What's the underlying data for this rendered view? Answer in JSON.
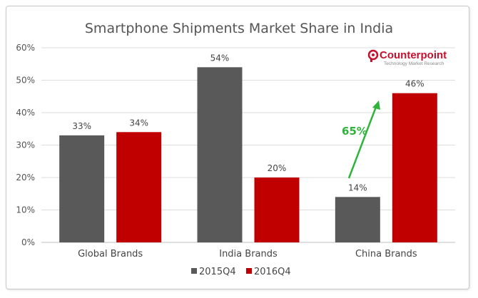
{
  "chart_data": {
    "type": "bar",
    "title": "Smartphone Shipments Market Share in India",
    "categories": [
      "Global Brands",
      "India Brands",
      "China Brands"
    ],
    "series": [
      {
        "name": "2015Q4",
        "values": [
          33,
          54,
          14
        ],
        "color": "#595959"
      },
      {
        "name": "2016Q4",
        "values": [
          34,
          20,
          46
        ],
        "color": "#c00000"
      }
    ],
    "data_labels": [
      [
        "33%",
        "54%",
        "14%"
      ],
      [
        "34%",
        "20%",
        "46%"
      ]
    ],
    "ylim": [
      0,
      60
    ],
    "yticks": [
      "0%",
      "10%",
      "20%",
      "30%",
      "40%",
      "50%",
      "60%"
    ],
    "ytick_values": [
      0,
      10,
      20,
      30,
      40,
      50,
      60
    ],
    "grid": true,
    "legend_position": "bottom",
    "annotation": {
      "text": "65%",
      "color": "#2fb33a",
      "category": "China Brands"
    }
  },
  "logo": {
    "name": "Counterpoint",
    "tagline": "Technology Market Research",
    "icon": "counterpoint-logo-icon",
    "color": "#c8102e"
  }
}
